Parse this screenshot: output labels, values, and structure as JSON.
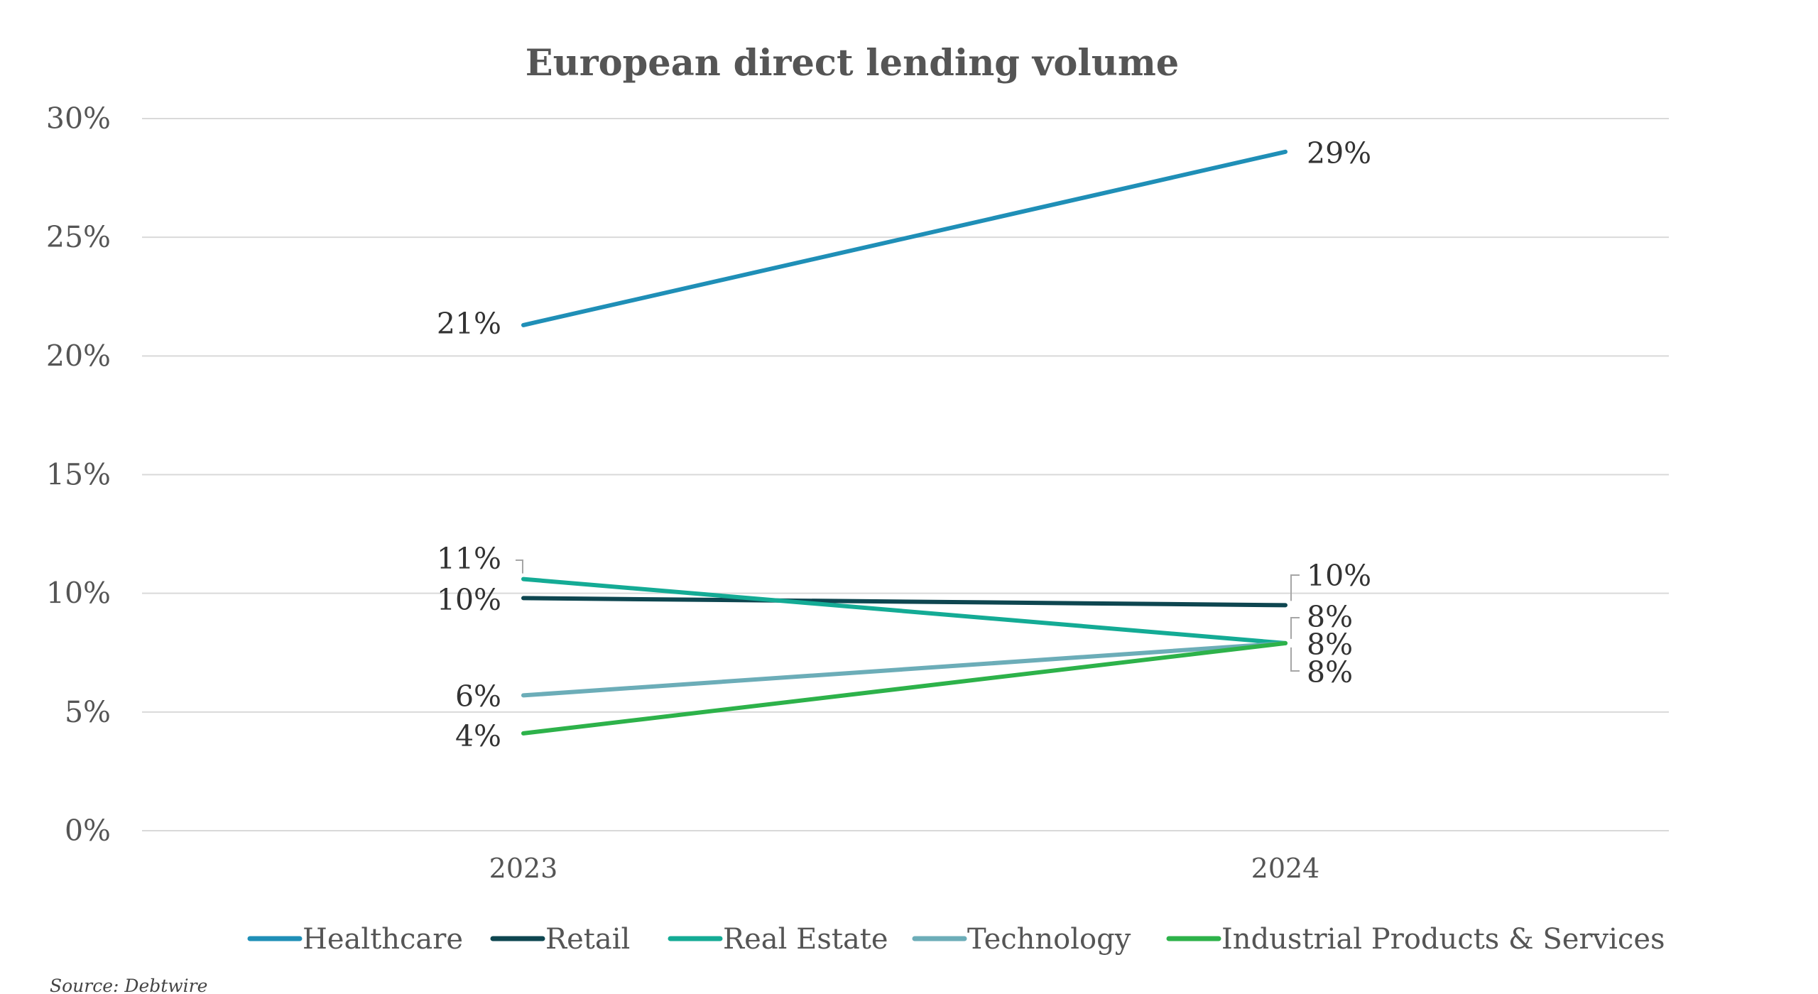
{
  "chart_data": {
    "type": "line",
    "title": "European direct lending volume",
    "categories": [
      "2023",
      "2024"
    ],
    "ylim": [
      0,
      30
    ],
    "yticks": [
      "0%",
      "5%",
      "10%",
      "15%",
      "20%",
      "25%",
      "30%"
    ],
    "yticks_values": [
      0,
      5,
      10,
      15,
      20,
      25,
      30
    ],
    "grid": true,
    "legend_position": "bottom",
    "series": [
      {
        "name": "Healthcare",
        "values": [
          21.3,
          28.6
        ],
        "labels": [
          "21%",
          "29%"
        ],
        "color": "#1f8fb7"
      },
      {
        "name": "Retail",
        "values": [
          9.8,
          9.5
        ],
        "labels": [
          "10%",
          "10%"
        ],
        "color": "#0e4650"
      },
      {
        "name": "Real Estate",
        "values": [
          10.6,
          7.9
        ],
        "labels": [
          "11%",
          "8%"
        ],
        "color": "#14ab95"
      },
      {
        "name": "Technology",
        "values": [
          5.7,
          7.9
        ],
        "labels": [
          "6%",
          "8%"
        ],
        "color": "#6cadb8"
      },
      {
        "name": "Industrial Products & Services",
        "values": [
          4.1,
          7.9
        ],
        "labels": [
          "4%",
          "8%"
        ],
        "color": "#2db24a"
      }
    ],
    "source": "Source: Debtwire"
  }
}
